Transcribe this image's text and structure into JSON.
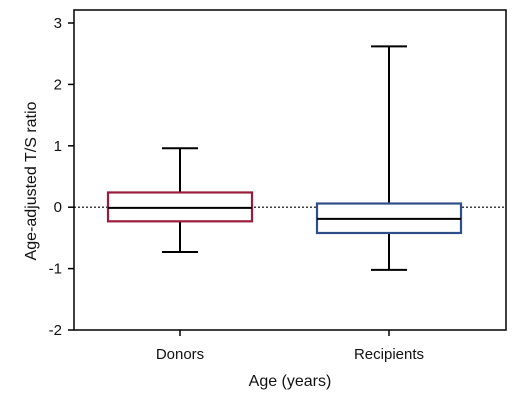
{
  "chart_data": {
    "type": "box",
    "title": "",
    "xlabel": "Age (years)",
    "ylabel": "Age-adjusted T/S ratio",
    "ylim": [
      -2,
      3
    ],
    "yticks": [
      -2,
      -1,
      0,
      1,
      2,
      3
    ],
    "ytick_labels": [
      "-2",
      "-1",
      "0",
      "1",
      "2",
      "3"
    ],
    "reference_line": {
      "y": 0,
      "style": "dotted"
    },
    "categories": [
      "Donors",
      "Recipients"
    ],
    "boxes": [
      {
        "name": "Donors",
        "min": -0.73,
        "q1": -0.23,
        "median": -0.01,
        "q3": 0.24,
        "max": 0.96,
        "color": "#9b1b3c"
      },
      {
        "name": "Recipients",
        "min": -1.02,
        "q1": -0.42,
        "median": -0.19,
        "q3": 0.06,
        "max": 2.62,
        "color": "#2e4f8a"
      }
    ]
  }
}
